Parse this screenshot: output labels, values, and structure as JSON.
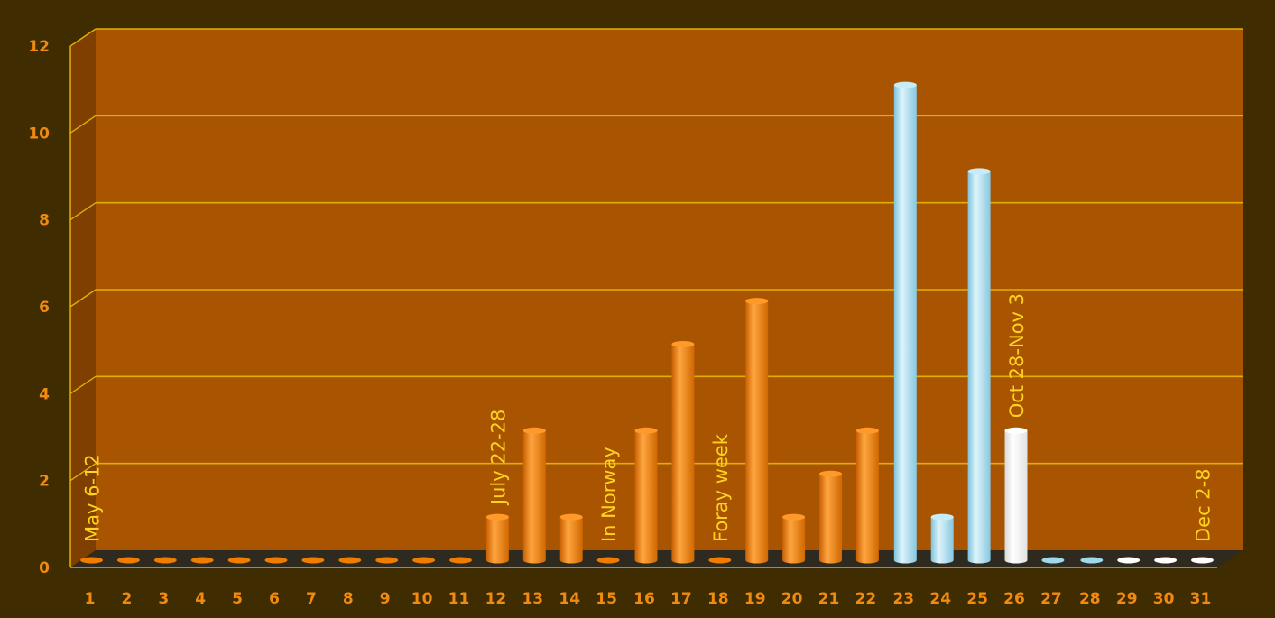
{
  "chart_data": {
    "type": "bar",
    "categories": [
      "1",
      "2",
      "3",
      "4",
      "5",
      "6",
      "7",
      "8",
      "9",
      "10",
      "11",
      "12",
      "13",
      "14",
      "15",
      "16",
      "17",
      "18",
      "19",
      "20",
      "21",
      "22",
      "23",
      "24",
      "25",
      "26",
      "27",
      "28",
      "29",
      "30",
      "31"
    ],
    "values": [
      0,
      0,
      0,
      0,
      0,
      0,
      0,
      0,
      0,
      0,
      0,
      1,
      3,
      1,
      0,
      3,
      5,
      0,
      6,
      1,
      2,
      3,
      11,
      1,
      9,
      3,
      0,
      0,
      0,
      0,
      0
    ],
    "bar_colors": [
      "#f07d00",
      "#f07d00",
      "#f07d00",
      "#f07d00",
      "#f07d00",
      "#f07d00",
      "#f07d00",
      "#f07d00",
      "#f07d00",
      "#f07d00",
      "#f07d00",
      "#f07d00",
      "#f07d00",
      "#f07d00",
      "#f07d00",
      "#f07d00",
      "#f07d00",
      "#f07d00",
      "#f07d00",
      "#f07d00",
      "#f07d00",
      "#f07d00",
      "#9fd9ec",
      "#9fd9ec",
      "#9fd9ec",
      "#ffffff",
      "#9fd9ec",
      "#9fd9ec",
      "#ffffff",
      "#ffffff",
      "#ffffff"
    ],
    "ylim": [
      0,
      12
    ],
    "yticks": [
      0,
      2,
      4,
      6,
      8,
      10,
      12
    ],
    "grid": true,
    "title": "",
    "xlabel": "",
    "ylabel": "",
    "annotations": [
      {
        "category": "1",
        "text": "May 6-12"
      },
      {
        "category": "12",
        "text": "July 22-28"
      },
      {
        "category": "15",
        "text": "In Norway"
      },
      {
        "category": "18",
        "text": "Foray week"
      },
      {
        "category": "26",
        "text": "Oct 28-Nov 3"
      },
      {
        "category": "31",
        "text": "Dec 2-8"
      }
    ],
    "colors": {
      "background": "#3f2c00",
      "plot_back": "#a85400",
      "plot_side": "#7e3f00",
      "floor": "#2e2a20",
      "grid": "#e0b000",
      "tick_text": "#f08a10",
      "annotation_text": "#ffd21e"
    }
  }
}
